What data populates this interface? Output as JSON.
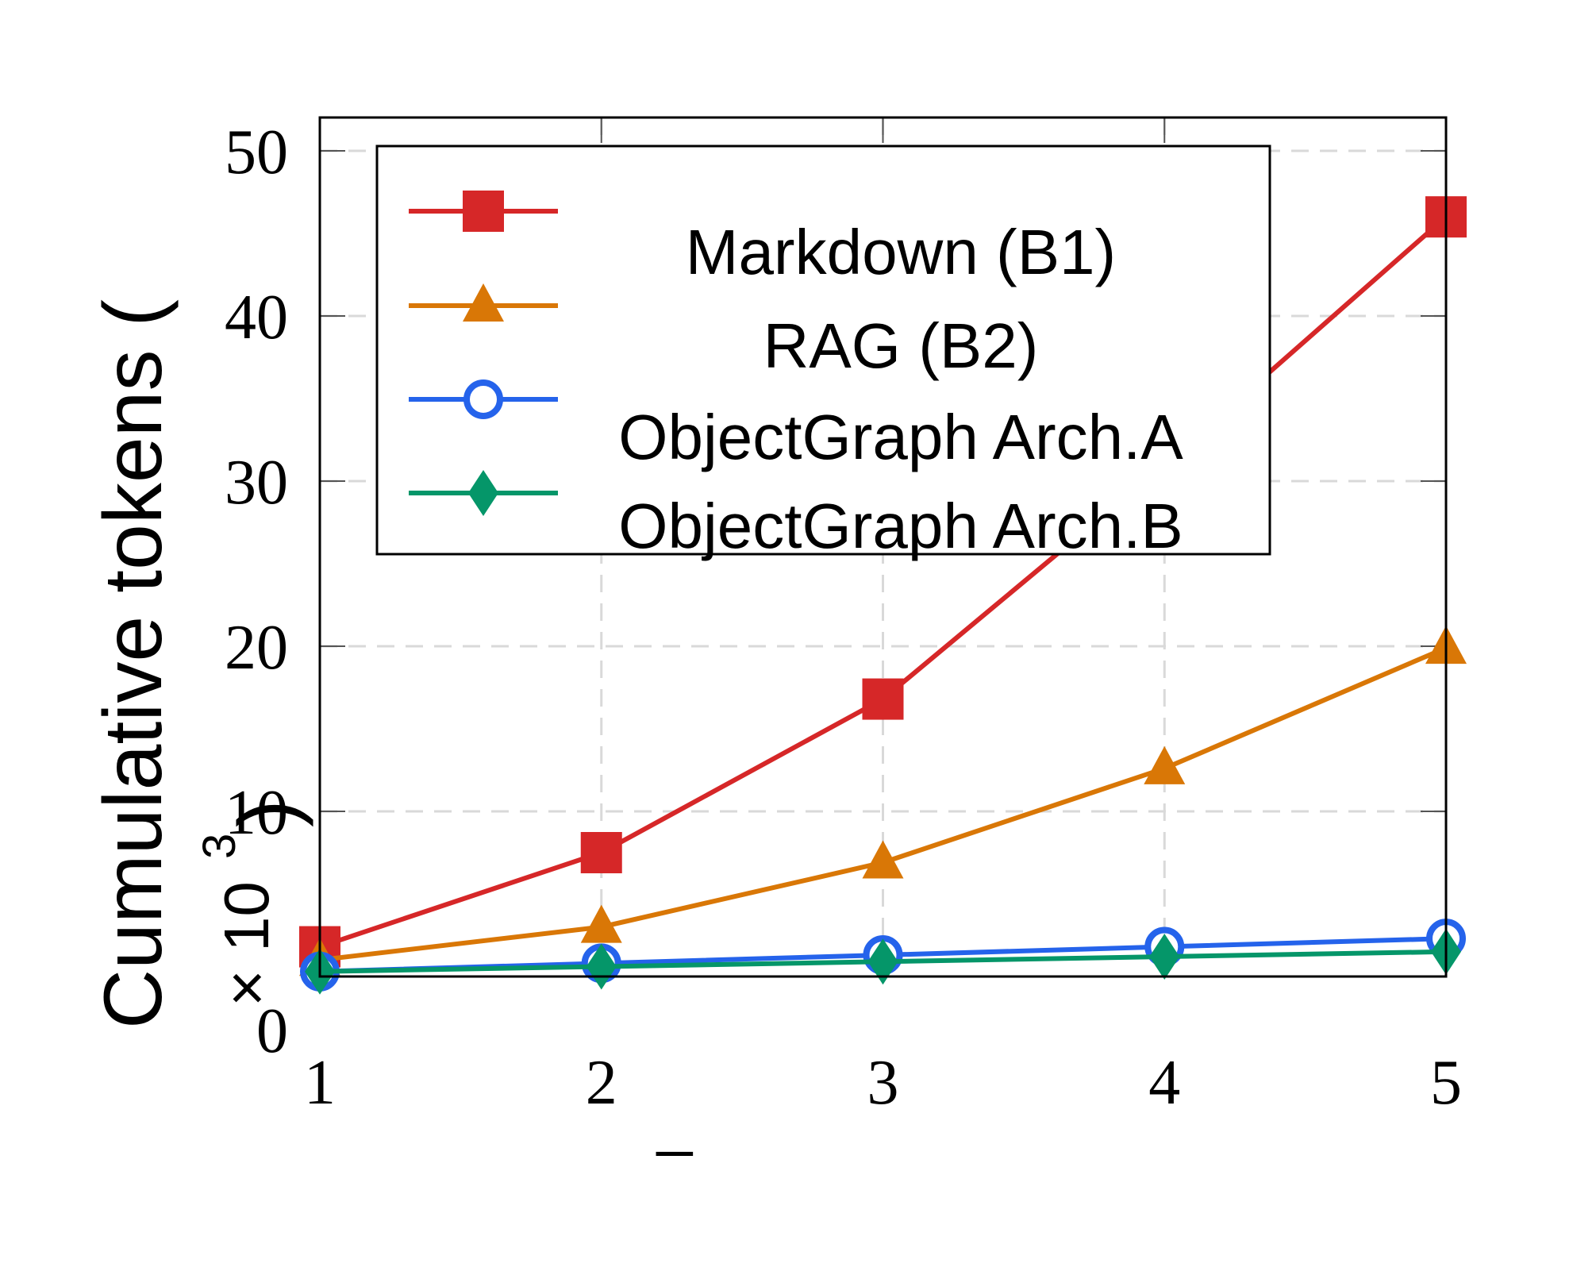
{
  "chart_data": {
    "type": "line",
    "x": [
      1,
      2,
      3,
      4,
      5
    ],
    "xticks": [
      "1",
      "2",
      "3",
      "4",
      "5"
    ],
    "yticks": [
      "0",
      "10",
      "20",
      "30",
      "40",
      "50"
    ],
    "xlim": [
      1,
      5
    ],
    "ylim": [
      0,
      52
    ],
    "xlabel": "_",
    "ylabel_main": "Cumulative tokens (",
    "ylabel_times": "× 10",
    "ylabel_exp": "3",
    "ylabel_close": ")",
    "grid": true,
    "legend_position": "top-left",
    "series": [
      {
        "name": "Markdown (B1)",
        "color": "#d62728",
        "marker": "square",
        "values": [
          1.8,
          7.5,
          16.8,
          31.0,
          46.0
        ]
      },
      {
        "name": "RAG (B2)",
        "color": "#d97706",
        "marker": "triangle",
        "values": [
          1.0,
          3.0,
          6.9,
          12.6,
          19.9
        ]
      },
      {
        "name": "ObjectGraph Arch.A",
        "color": "#2563eb",
        "marker": "circle-open",
        "values": [
          0.3,
          0.8,
          1.3,
          1.8,
          2.3
        ]
      },
      {
        "name": "ObjectGraph Arch.B",
        "color": "#059669",
        "marker": "diamond",
        "values": [
          0.3,
          0.6,
          0.9,
          1.2,
          1.5
        ]
      }
    ]
  }
}
